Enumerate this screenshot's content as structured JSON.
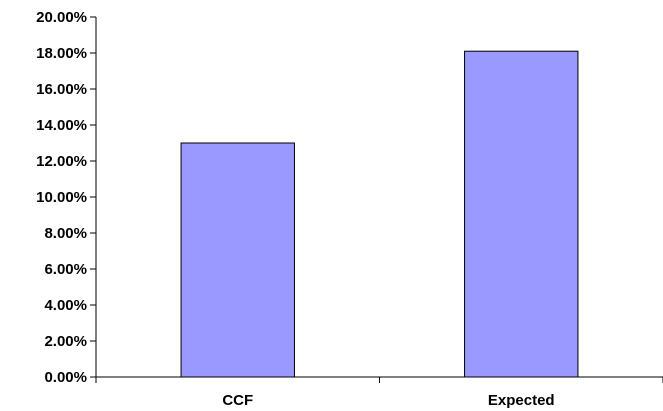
{
  "chart_data": {
    "type": "bar",
    "title": "",
    "xlabel": "",
    "ylabel": "",
    "categories": [
      "CCF",
      "Expected"
    ],
    "values": [
      13.0,
      18.1
    ],
    "ylim": [
      0,
      20
    ],
    "yticks": [
      0,
      2,
      4,
      6,
      8,
      10,
      12,
      14,
      16,
      18,
      20
    ],
    "ytick_labels": [
      "0.00%",
      "2.00%",
      "4.00%",
      "6.00%",
      "8.00%",
      "10.00%",
      "12.00%",
      "14.00%",
      "16.00%",
      "18.00%",
      "20.00%"
    ],
    "grid": false,
    "legend": "none",
    "colors": {
      "bar_fill": "#9999ff",
      "bar_stroke": "#000000",
      "axis": "#000000"
    }
  }
}
